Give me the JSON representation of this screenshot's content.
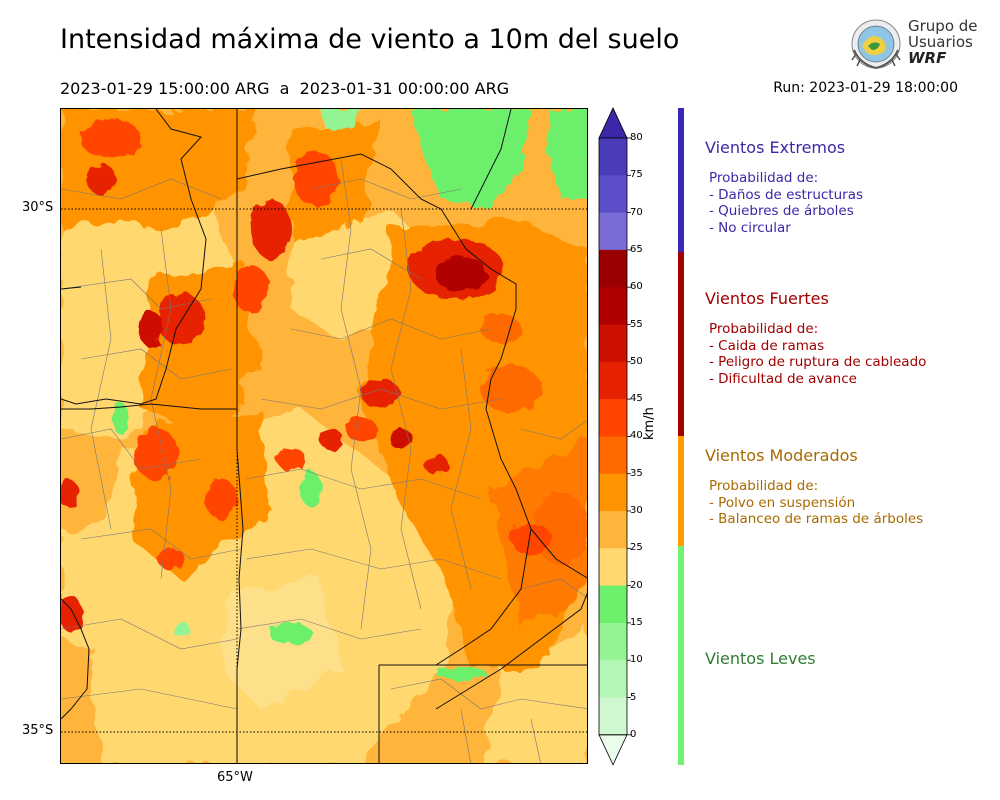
{
  "title": "Intensidad máxima de viento a 10m del suelo",
  "subtitle": "2023-01-29 15:00:00 ARG  a  2023-01-31 00:00:00 ARG",
  "run": "Run: 2023-01-29 18:00:00",
  "logo": {
    "line1": "Grupo de",
    "line2": "Usuarios",
    "line3": "WRF"
  },
  "map": {
    "lat_labels": [
      "30°S",
      "35°S"
    ],
    "lon_labels": [
      "65°W"
    ]
  },
  "colorbar": {
    "unit": "km/h",
    "ticks": [
      "80",
      "75",
      "70",
      "65",
      "60",
      "55",
      "50",
      "45",
      "40",
      "35",
      "30",
      "25",
      "20",
      "15",
      "10",
      "5",
      "0"
    ],
    "colors": [
      "#3a28a8",
      "#4a3cb8",
      "#5c4ec8",
      "#7a6cd8",
      "#9a0000",
      "#b00000",
      "#cc1100",
      "#e62200",
      "#ff4400",
      "#ff6a00",
      "#ff9400",
      "#ffb43c",
      "#ffd870",
      "#6cf06c",
      "#94f494",
      "#b4f6b4",
      "#d0f8d0",
      "#eafcea"
    ]
  },
  "categories": [
    {
      "title": "Vientos Extremos",
      "color": "#3a28a8",
      "lines": [
        "Probabilidad de:",
        "- Daños de estructuras",
        "- Quiebres de árboles",
        "- No circular"
      ]
    },
    {
      "title": "Vientos Fuertes",
      "color": "#a00000",
      "lines": [
        "Probabilidad de:",
        "- Caida de ramas",
        "- Peligro de ruptura de cableado",
        "- Dificultad de avance"
      ]
    },
    {
      "title": "Vientos Moderados",
      "color": "#a86a00",
      "lines": [
        "Probabilidad de:",
        "- Polvo en suspensión",
        "- Balanceo de ramas de árboles"
      ]
    },
    {
      "title": "Vientos Leves",
      "color": "#2e7d32",
      "lines": []
    }
  ],
  "legend_colors": {
    "extremos": "#3a28b8",
    "fuertes": "#a00000",
    "moderados": "#ff9a00",
    "leves": "#72f272"
  }
}
